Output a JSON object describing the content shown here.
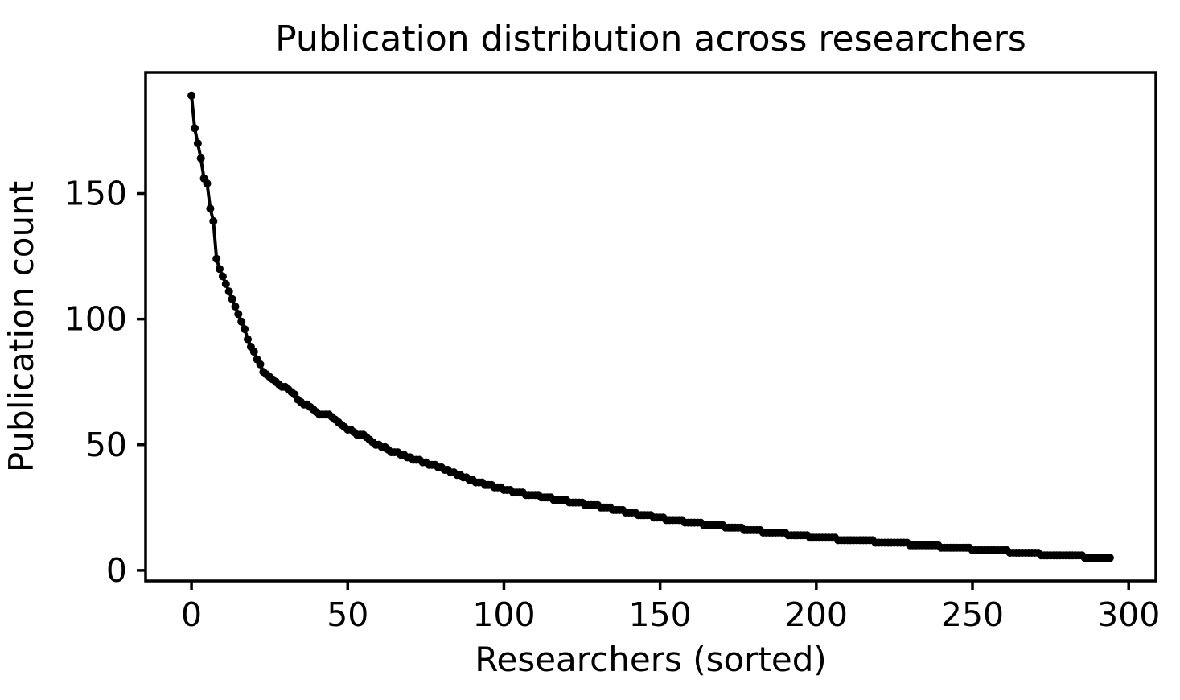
{
  "chart_data": {
    "type": "line",
    "title": "Publication distribution across researchers",
    "xlabel": "Researchers (sorted)",
    "ylabel": "Publication count",
    "legend": null,
    "grid": false,
    "color": "#000000",
    "marker": "o",
    "x_ticks": [
      0,
      50,
      100,
      150,
      200,
      250,
      300
    ],
    "y_ticks": [
      0,
      50,
      100,
      150
    ],
    "xlim": [
      -14.7,
      308.7
    ],
    "ylim": [
      -4.2,
      198.2
    ],
    "x_start_index": 0,
    "num_points": 295,
    "values": [
      189,
      176,
      170,
      164,
      156,
      154,
      144,
      139,
      124,
      120,
      117,
      114,
      111,
      108,
      105,
      102,
      99,
      96,
      92,
      89,
      87,
      84,
      82,
      79,
      78,
      77,
      76,
      75,
      74,
      73,
      73,
      72,
      71,
      70,
      68,
      67,
      66,
      66,
      65,
      64,
      63,
      62,
      62,
      62,
      62,
      61,
      60,
      59,
      58,
      57,
      56,
      56,
      55,
      54,
      54,
      54,
      53,
      52,
      51,
      50,
      50,
      49,
      49,
      48,
      47,
      47,
      47,
      46,
      46,
      45,
      45,
      44,
      44,
      44,
      43,
      43,
      42,
      42,
      42,
      41,
      41,
      40,
      40,
      39,
      39,
      38,
      38,
      37,
      37,
      36,
      36,
      35,
      35,
      35,
      34,
      34,
      34,
      33,
      33,
      33,
      32,
      32,
      32,
      31,
      31,
      31,
      31,
      30,
      30,
      30,
      30,
      30,
      29,
      29,
      29,
      29,
      28,
      28,
      28,
      28,
      28,
      27,
      27,
      27,
      27,
      27,
      26,
      26,
      26,
      26,
      26,
      25,
      25,
      25,
      25,
      24,
      24,
      24,
      24,
      23,
      23,
      23,
      23,
      22,
      22,
      22,
      22,
      22,
      21,
      21,
      21,
      21,
      20,
      20,
      20,
      20,
      20,
      20,
      19,
      19,
      19,
      19,
      19,
      19,
      18,
      18,
      18,
      18,
      18,
      18,
      18,
      17,
      17,
      17,
      17,
      17,
      17,
      16,
      16,
      16,
      16,
      16,
      16,
      15,
      15,
      15,
      15,
      15,
      15,
      15,
      15,
      14,
      14,
      14,
      14,
      14,
      14,
      14,
      13,
      13,
      13,
      13,
      13,
      13,
      13,
      13,
      13,
      12,
      12,
      12,
      12,
      12,
      12,
      12,
      12,
      12,
      12,
      12,
      12,
      11,
      11,
      11,
      11,
      11,
      11,
      11,
      11,
      11,
      11,
      11,
      10,
      10,
      10,
      10,
      10,
      10,
      10,
      10,
      10,
      10,
      9,
      9,
      9,
      9,
      9,
      9,
      9,
      9,
      9,
      9,
      8,
      8,
      8,
      8,
      8,
      8,
      8,
      8,
      8,
      8,
      8,
      8,
      7,
      7,
      7,
      7,
      7,
      7,
      7,
      7,
      7,
      7,
      6,
      6,
      6,
      6,
      6,
      6,
      6,
      6,
      6,
      6,
      6,
      6,
      6,
      6,
      5,
      5,
      5,
      5,
      5,
      5,
      5,
      5,
      5
    ]
  }
}
